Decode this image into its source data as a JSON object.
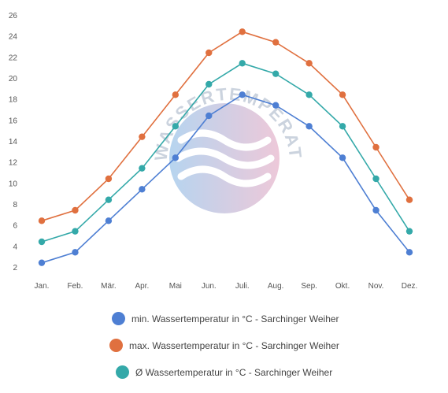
{
  "chart_data": {
    "type": "line",
    "categories": [
      "Jan.",
      "Feb.",
      "Mär.",
      "Apr.",
      "Mai",
      "Jun.",
      "Juli.",
      "Aug.",
      "Sep.",
      "Okt.",
      "Nov.",
      "Dez."
    ],
    "ylim": [
      2,
      26
    ],
    "yticks": [
      2,
      4,
      6,
      8,
      10,
      12,
      14,
      16,
      18,
      20,
      22,
      24,
      26
    ],
    "grid": false,
    "legend_position": "bottom",
    "series": [
      {
        "name": "min. Wassertemperatur in °C - Sarchinger Weiher",
        "color": "#4e7fd3",
        "values": [
          2.4,
          3.4,
          6.4,
          9.4,
          12.4,
          16.4,
          18.4,
          17.4,
          15.4,
          12.4,
          7.4,
          3.4
        ]
      },
      {
        "name": "max. Wassertemperatur in °C - Sarchinger Weiher",
        "color": "#e0703f",
        "values": [
          6.4,
          7.4,
          10.4,
          14.4,
          18.4,
          22.4,
          24.4,
          23.4,
          21.4,
          18.4,
          13.4,
          8.4
        ]
      },
      {
        "name": "Ø Wassertemperatur in °C - Sarchinger Weiher",
        "color": "#34a9a9",
        "values": [
          4.4,
          5.4,
          8.4,
          11.4,
          15.4,
          19.4,
          21.4,
          20.4,
          18.4,
          15.4,
          10.4,
          5.4
        ]
      }
    ]
  },
  "watermark": {
    "text": "WASSERTEMPERATUR.ORG",
    "colors": [
      "#9ec6ea",
      "#e7b6cc"
    ]
  }
}
